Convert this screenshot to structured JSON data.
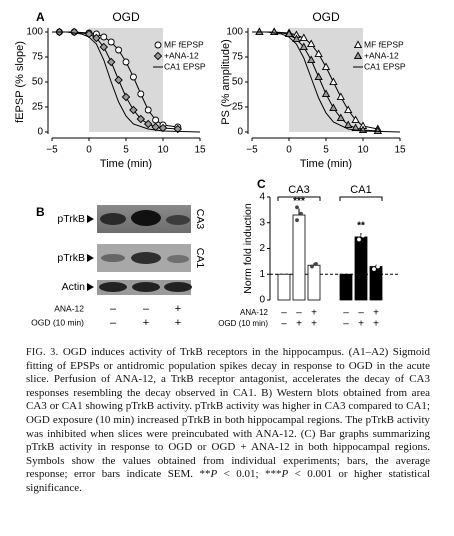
{
  "chart_data": [
    {
      "type": "line",
      "panel_label": "A",
      "title": "OGD",
      "xlabel": "Time (min)",
      "ylabel": "fEPSP (% slope)",
      "xlim": [
        -5,
        15
      ],
      "ylim": [
        0,
        100
      ],
      "xticks": [
        {
          "value": -5,
          "label": "−5"
        },
        0,
        5,
        10,
        15
      ],
      "yticks": [
        0,
        25,
        50,
        75,
        100
      ],
      "shaded": [
        0,
        10
      ],
      "shade_color": "#d9d9d9",
      "legend": "upper right",
      "series": [
        {
          "name": "MF fEPSP",
          "marker": "circle",
          "color": "#ffffff",
          "x": [
            -4,
            -2,
            0,
            1,
            2,
            3,
            4,
            5,
            6,
            7,
            8,
            9,
            10,
            12
          ],
          "values": [
            100,
            100,
            99,
            98,
            95,
            90,
            82,
            70,
            55,
            38,
            22,
            12,
            7,
            5
          ]
        },
        {
          "name": "+ANA-12",
          "marker": "diamond",
          "color": "#9a9a9a",
          "x": [
            -4,
            -2,
            0,
            1,
            2,
            3,
            4,
            5,
            6,
            7,
            8,
            9,
            10,
            12
          ],
          "values": [
            100,
            100,
            98,
            94,
            85,
            70,
            52,
            35,
            22,
            13,
            8,
            5,
            4,
            3
          ]
        },
        {
          "name": "CA1 EPSP",
          "color": "#000000",
          "x": [
            -5,
            -3,
            -1,
            0,
            1,
            2,
            3,
            4,
            5,
            6,
            8,
            10,
            15
          ],
          "values": [
            100,
            100,
            98,
            95,
            88,
            72,
            50,
            30,
            16,
            8,
            3,
            1,
            0
          ]
        }
      ]
    },
    {
      "type": "line",
      "title": "OGD",
      "xlabel": "Time (min)",
      "ylabel": "PS (% amplitude)",
      "xlim": [
        -5,
        15
      ],
      "ylim": [
        0,
        100
      ],
      "xticks": [
        {
          "value": -5,
          "label": "−5"
        },
        0,
        5,
        10,
        15
      ],
      "yticks": [
        0,
        25,
        50,
        75,
        100
      ],
      "shaded": [
        0,
        10
      ],
      "shade_color": "#d9d9d9",
      "legend": "upper right",
      "series": [
        {
          "name": "MF fEPSP",
          "marker": "triangle",
          "color": "#ffffff",
          "x": [
            -4,
            -2,
            0,
            1,
            2,
            3,
            4,
            5,
            6,
            7,
            8,
            9,
            10,
            12
          ],
          "values": [
            100,
            100,
            99,
            97,
            94,
            88,
            78,
            65,
            50,
            35,
            22,
            12,
            6,
            3
          ]
        },
        {
          "name": "+ANA-12",
          "marker": "triangle",
          "color": "#9a9a9a",
          "x": [
            -4,
            -2,
            0,
            1,
            2,
            3,
            4,
            5,
            6,
            7,
            8,
            9,
            10,
            12
          ],
          "values": [
            100,
            100,
            98,
            93,
            85,
            72,
            55,
            38,
            24,
            14,
            7,
            4,
            2,
            1
          ]
        },
        {
          "name": "CA1 EPSP",
          "color": "#000000",
          "x": [
            -5,
            -3,
            -1,
            0,
            1,
            2,
            3,
            4,
            5,
            6,
            8,
            10,
            15
          ],
          "values": [
            100,
            100,
            98,
            95,
            88,
            74,
            54,
            34,
            19,
            10,
            3,
            1,
            0
          ]
        }
      ]
    },
    {
      "type": "bar",
      "panel_label": "C",
      "ylabel": "Norm fold induction",
      "ylim": [
        0,
        4
      ],
      "yticks": [
        0,
        1,
        2,
        3,
        4
      ],
      "reference_line": 1,
      "groups": [
        {
          "name": "CA3",
          "color": "#ffffff",
          "values": [
            1,
            3.3,
            1.35
          ],
          "errors": [
            0,
            0.25,
            0.08
          ],
          "points": [
            null,
            [
              3.1,
              3.35,
              3.6
            ],
            [
              1.3,
              1.4
            ]
          ],
          "stars": [
            null,
            "***",
            null
          ]
        },
        {
          "name": "CA1",
          "color": "#000000",
          "values": [
            1,
            2.45,
            1.3
          ],
          "errors": [
            0,
            0.15,
            0.08
          ],
          "points": [
            null,
            [
              2.35,
              2.5,
              2.7,
              2.85
            ],
            [
              1.2,
              1.3,
              1.4
            ]
          ],
          "stars": [
            null,
            "**",
            null
          ]
        }
      ],
      "rows": [
        {
          "label": "ANA-12",
          "signs": [
            "–",
            "–",
            "+"
          ]
        },
        {
          "label": "OGD (10 min)",
          "signs": [
            "–",
            "+",
            "+"
          ]
        }
      ]
    }
  ],
  "blot": {
    "panel_label": "B",
    "rows": [
      "pTrkB",
      "pTrkB",
      "Actin"
    ],
    "regions": [
      "CA3",
      "CA1"
    ],
    "treatments": [
      {
        "label": "ANA-12",
        "signs": [
          "–",
          "–",
          "+"
        ]
      },
      {
        "label": "OGD (10 min)",
        "signs": [
          "–",
          "+",
          "+"
        ]
      }
    ]
  },
  "caption": {
    "label": "FIG. 3.",
    "text": [
      " OGD induces activity of TrkB receptors in the hippocampus. (A1–A2) Sigmoid fitting of EPSPs or antidromic population spikes decay in response to OGD in the acute slice. Perfusion of ANA-12, a TrkB receptor antagonist, accelerates the decay of CA3 responses resembling the decay observed in CA1. B) Western blots obtained from area CA3 or CA1 showing pTrkB activity. pTrkB activity was higher in CA3 compared to CA1; OGD exposure (10 min) increased pTrkB in both hippocampal regions. The pTrkB activity was inhibited when slices were preincubated with ANA-12. (C) Bar graphs summarizing pTrkB activity in response to OGD or OGD + ANA-12 in both hippocampal regions. Symbols show the values obtained from individual experiments; bars, the average response; error bars indicate SEM. **",
      "P",
      " < 0.01; ***",
      "P",
      " < 0.001 or higher statistical significance."
    ]
  }
}
